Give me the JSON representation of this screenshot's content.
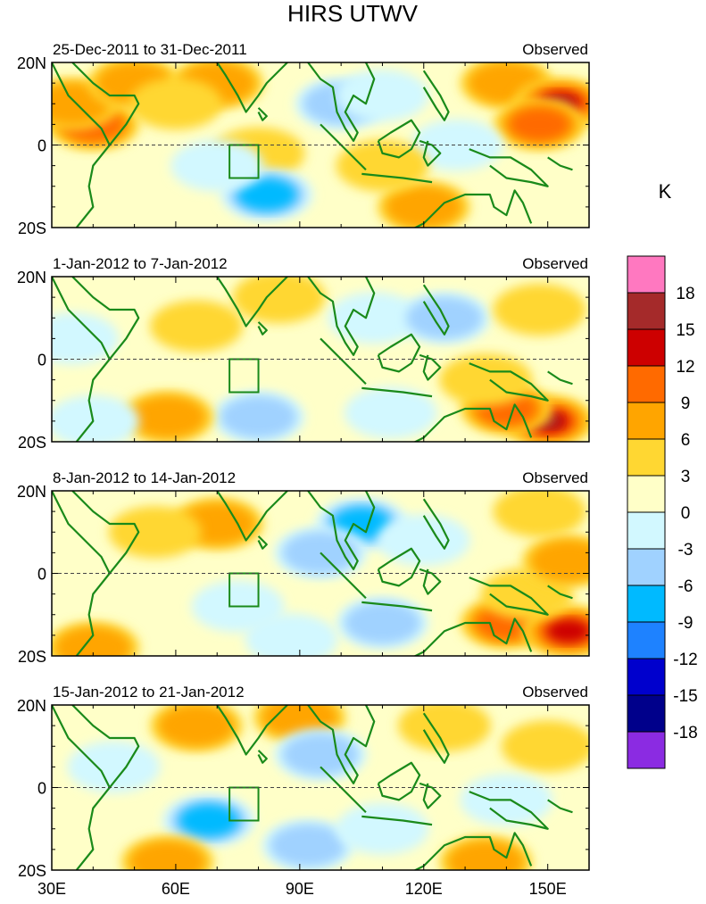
{
  "chart_data": {
    "type": "heatmap",
    "title": "HIRS UTWV",
    "unit_label": "K",
    "x_ticks": [
      "30E",
      "60E",
      "90E",
      "120E",
      "150E"
    ],
    "y_ticks": [
      "20N",
      "0",
      "20S"
    ],
    "colorbar_labels": [
      "18",
      "15",
      "12",
      "9",
      "6",
      "3",
      "0",
      "-3",
      "-6",
      "-9",
      "-12",
      "-15",
      "-18"
    ],
    "colorbar_colors": [
      "#ff78c0",
      "#a52a2a",
      "#cd0000",
      "#ff6a00",
      "#ffa500",
      "#ffd732",
      "#ffffc8",
      "#d2f8ff",
      "#a0d2ff",
      "#00baff",
      "#1e82ff",
      "#0000cd",
      "#00008b",
      "#8b2be2"
    ],
    "panels": [
      {
        "period": "25-Dec-2011 to 31-Dec-2011",
        "label": "Observed",
        "blobs": [
          {
            "lon": 40,
            "lat": 5,
            "value": 9
          },
          {
            "lon": 35,
            "lat": 10,
            "value": 6
          },
          {
            "lon": 50,
            "lat": 15,
            "value": 6
          },
          {
            "lon": 70,
            "lat": 15,
            "value": 6
          },
          {
            "lon": 60,
            "lat": 10,
            "value": 3
          },
          {
            "lon": 80,
            "lat": -2,
            "value": 3
          },
          {
            "lon": 82,
            "lat": -12,
            "value": -9
          },
          {
            "lon": 70,
            "lat": -5,
            "value": -3
          },
          {
            "lon": 100,
            "lat": 10,
            "value": -6
          },
          {
            "lon": 110,
            "lat": 12,
            "value": -3
          },
          {
            "lon": 140,
            "lat": 15,
            "value": 6
          },
          {
            "lon": 153,
            "lat": 10,
            "value": 15
          },
          {
            "lon": 148,
            "lat": 5,
            "value": 9
          },
          {
            "lon": 120,
            "lat": -15,
            "value": 6
          },
          {
            "lon": 128,
            "lat": 0,
            "value": -3
          },
          {
            "lon": 110,
            "lat": -5,
            "value": 3
          }
        ]
      },
      {
        "period": "1-Jan-2012 to 7-Jan-2012",
        "label": "Observed",
        "blobs": [
          {
            "lon": 65,
            "lat": 8,
            "value": 3
          },
          {
            "lon": 85,
            "lat": 15,
            "value": 3
          },
          {
            "lon": 80,
            "lat": -14,
            "value": -6
          },
          {
            "lon": 58,
            "lat": -14,
            "value": 6
          },
          {
            "lon": 40,
            "lat": -15,
            "value": -3
          },
          {
            "lon": 108,
            "lat": 10,
            "value": -3
          },
          {
            "lon": 125,
            "lat": 10,
            "value": -6
          },
          {
            "lon": 150,
            "lat": -15,
            "value": 15
          },
          {
            "lon": 140,
            "lat": -12,
            "value": 9
          },
          {
            "lon": 135,
            "lat": -5,
            "value": 3
          },
          {
            "lon": 148,
            "lat": 12,
            "value": 3
          },
          {
            "lon": 112,
            "lat": -13,
            "value": -3
          },
          {
            "lon": 35,
            "lat": 5,
            "value": -3
          }
        ]
      },
      {
        "period": "8-Jan-2012 to 14-Jan-2012",
        "label": "Observed",
        "blobs": [
          {
            "lon": 70,
            "lat": 12,
            "value": 6
          },
          {
            "lon": 55,
            "lat": 10,
            "value": 3
          },
          {
            "lon": 105,
            "lat": 12,
            "value": -9
          },
          {
            "lon": 95,
            "lat": 5,
            "value": -6
          },
          {
            "lon": 120,
            "lat": 8,
            "value": -3
          },
          {
            "lon": 75,
            "lat": -8,
            "value": -3
          },
          {
            "lon": 110,
            "lat": -12,
            "value": -6
          },
          {
            "lon": 140,
            "lat": -12,
            "value": 9
          },
          {
            "lon": 155,
            "lat": -14,
            "value": 12
          },
          {
            "lon": 145,
            "lat": -5,
            "value": 3
          },
          {
            "lon": 40,
            "lat": -18,
            "value": 6
          },
          {
            "lon": 148,
            "lat": 15,
            "value": 3
          },
          {
            "lon": 155,
            "lat": 3,
            "value": 6
          },
          {
            "lon": 88,
            "lat": -16,
            "value": -3
          }
        ]
      },
      {
        "period": "15-Jan-2012 to 21-Jan-2012",
        "label": "Observed",
        "blobs": [
          {
            "lon": 65,
            "lat": 15,
            "value": 6
          },
          {
            "lon": 90,
            "lat": 17,
            "value": 6
          },
          {
            "lon": 125,
            "lat": 15,
            "value": 3
          },
          {
            "lon": 68,
            "lat": -8,
            "value": -9
          },
          {
            "lon": 58,
            "lat": -18,
            "value": 6
          },
          {
            "lon": 95,
            "lat": 8,
            "value": -6
          },
          {
            "lon": 92,
            "lat": -14,
            "value": -6
          },
          {
            "lon": 110,
            "lat": -10,
            "value": -3
          },
          {
            "lon": 135,
            "lat": -18,
            "value": 6
          },
          {
            "lon": 150,
            "lat": 10,
            "value": 3
          },
          {
            "lon": 140,
            "lat": -3,
            "value": -3
          },
          {
            "lon": 45,
            "lat": 5,
            "value": -3
          }
        ]
      }
    ]
  }
}
